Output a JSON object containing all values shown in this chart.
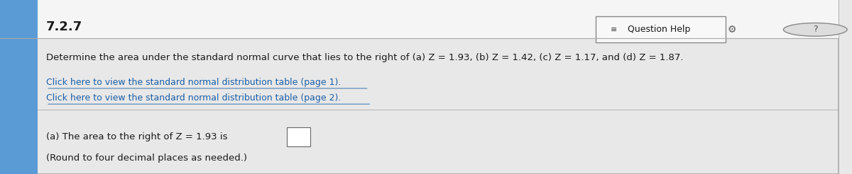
{
  "title": "7.2.7",
  "header_bg": "#f5f5f5",
  "main_bg": "#e8e8e8",
  "question_help_text": "Question Help",
  "main_text": "Determine the area under the standard normal curve that lies to the right of (a) Z = 1.93, (b) Z = 1.42, (c) Z = 1.17, and (d) Z = 1.87.",
  "link1": "Click here to view the standard normal distribution table (page 1).",
  "link2": "Click here to view the standard normal distribution table (page 2).",
  "answer_label": "(a) The area to the right of Z = 1.93 is",
  "round_note": "(Round to four decimal places as needed.)",
  "left_bar_color": "#5b9bd5",
  "left_bar_width": 0.045,
  "border_color": "#aaaaaa",
  "text_color": "#1a1a1a",
  "link_color": "#1a5fa8",
  "title_fontsize": 13,
  "main_fontsize": 9.5,
  "link_fontsize": 9.0,
  "answer_fontsize": 9.5,
  "qhelp_fontsize": 9.0
}
